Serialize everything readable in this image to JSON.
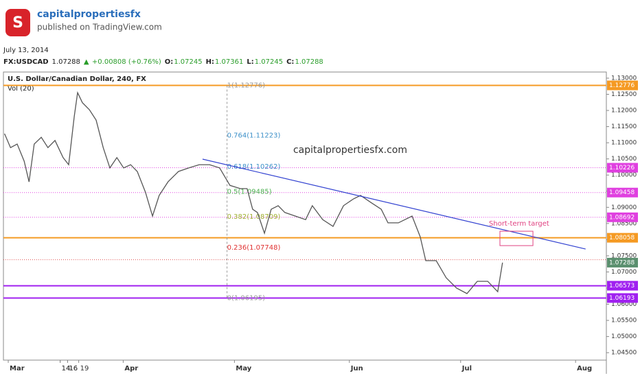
{
  "header": {
    "brand": "capitalpropertiesfx",
    "published": "published on TradingView.com",
    "date": "July 13, 2014",
    "quote": {
      "symbol": "FX:USDCAD",
      "last": "1.07288",
      "change": "+0.00808 (+0.76%)",
      "open_label": "O:",
      "open": "1.07245",
      "high_label": "H:",
      "high": "1.07361",
      "low_label": "L:",
      "low": "1.07245",
      "close_label": "C:",
      "close": "1.07288"
    }
  },
  "chart_data": {
    "type": "line",
    "title": "U.S. Dollar/Canadian Dollar, 240, FX",
    "subtitle": "Vol (20)",
    "watermark": "capitalpropertiesfx.com",
    "series": [
      {
        "name": "USDCAD",
        "color": "#555555",
        "x": [
          -1,
          0.6,
          2.4,
          4.3,
          5.6,
          7.0,
          8.9,
          10.7,
          12.6,
          14.8,
          16.3,
          17.8,
          18.7,
          20.0,
          21.9,
          23.7,
          25.6,
          27.4,
          29.3,
          31.1,
          33.0,
          34.8,
          37.0,
          38.9,
          40.7,
          43.1,
          45.9,
          48.7,
          51.5,
          54.3,
          57.0,
          59.8,
          62.6,
          64.4,
          65.9,
          67.2,
          69.1,
          70.9,
          72.8,
          74.6,
          77.4,
          80.2,
          82.0,
          84.8,
          87.6,
          90.4,
          93.1,
          95.0,
          97.8,
          100.6,
          102.4,
          105.2,
          108.9,
          111.1,
          112.6,
          115.4,
          118.1,
          120.9,
          123.7,
          126.5,
          129.3,
          132.0,
          133.3
        ],
        "values": [
          1.1128,
          1.1085,
          1.1096,
          1.1043,
          1.0979,
          1.1096,
          1.1117,
          1.1085,
          1.1107,
          1.1054,
          1.1032,
          1.1181,
          1.1255,
          1.1224,
          1.1202,
          1.117,
          1.1085,
          1.1022,
          1.1054,
          1.1022,
          1.1032,
          1.1011,
          1.0947,
          1.0873,
          1.0937,
          1.0979,
          1.1011,
          1.1022,
          1.1032,
          1.1032,
          1.1022,
          1.0968,
          1.0958,
          1.0958,
          1.0894,
          1.0884,
          1.082,
          1.0894,
          1.0905,
          1.0884,
          1.0873,
          1.0862,
          1.0905,
          1.0862,
          1.0841,
          1.0905,
          1.0926,
          1.0937,
          1.0915,
          1.0894,
          1.0852,
          1.0852,
          1.0873,
          1.0809,
          1.0735,
          1.0735,
          1.0682,
          1.065,
          1.0633,
          1.0671,
          1.0671,
          1.0639,
          1.07288
        ]
      }
    ],
    "xlim": [
      -1.3,
      161.3
    ],
    "ylim": [
      1.0427,
      1.1319
    ],
    "xticks": [
      {
        "value": 0,
        "label": "Mar"
      },
      16,
      {
        "value": 31,
        "label": "Apr"
      },
      14,
      {
        "value": 61,
        "label": "May"
      },
      19,
      {
        "value": 92,
        "label": "Jun"
      },
      16,
      {
        "value": 122,
        "label": "Jul"
      },
      14,
      {
        "value": 153,
        "label": "Aug"
      }
    ],
    "yticks": [
      {
        "value": 1.045,
        "label": "1.04500"
      },
      {
        "value": 1.05,
        "label": "1.05000"
      },
      {
        "value": 1.055,
        "label": "1.05500"
      },
      {
        "value": 1.06,
        "label": "1.06000"
      },
      {
        "value": 1.065,
        "label": "1.06500"
      },
      {
        "value": 1.07,
        "label": "1.07000"
      },
      {
        "value": 1.075,
        "label": "1.07500"
      },
      {
        "value": 1.08,
        "label": "1.08000"
      },
      {
        "value": 1.085,
        "label": "1.08500"
      },
      {
        "value": 1.09,
        "label": "1.09000"
      },
      {
        "value": 1.095,
        "label": "1.09500"
      },
      {
        "value": 1.1,
        "label": "1.10000"
      },
      {
        "value": 1.105,
        "label": "1.10500"
      },
      {
        "value": 1.11,
        "label": "1.11000"
      },
      {
        "value": 1.115,
        "label": "1.11500"
      },
      {
        "value": 1.12,
        "label": "1.12000"
      },
      {
        "value": 1.125,
        "label": "1.12500"
      },
      {
        "value": 1.13,
        "label": "1.13000"
      }
    ],
    "levels": [
      {
        "price": 1.12776,
        "color": "#f59a23",
        "style": "solid"
      },
      {
        "price": 1.10226,
        "color": "#e040e0",
        "style": "dotted"
      },
      {
        "price": 1.09458,
        "color": "#e040e0",
        "style": "dotted"
      },
      {
        "price": 1.08692,
        "color": "#e040e0",
        "style": "dotted"
      },
      {
        "price": 1.08058,
        "color": "#f59a23",
        "style": "solid"
      },
      {
        "price": 1.0738,
        "color": "#e05050",
        "style": "dotted"
      },
      {
        "price": 1.06573,
        "color": "#a020f0",
        "style": "solid"
      },
      {
        "price": 1.06193,
        "color": "#a020f0",
        "style": "solid"
      }
    ],
    "last_price": 1.07288,
    "fib_x": 59,
    "fibs": [
      {
        "value": 1.12776,
        "label": "1(1.12776)",
        "color": "#999999"
      },
      {
        "value": 1.11223,
        "label": "0.764(1.11223)",
        "color": "#3a8fc8"
      },
      {
        "value": 1.10262,
        "label": "0.618(1.10262)",
        "color": "#3a8fc8"
      },
      {
        "value": 1.09485,
        "label": "0.5(1.09485)",
        "color": "#4caf50"
      },
      {
        "value": 1.08709,
        "label": "0.382(1.08709)",
        "color": "#a0b030"
      },
      {
        "value": 1.07748,
        "label": "0.236(1.07748)",
        "color": "#e03030"
      },
      {
        "value": 1.06195,
        "label": "0(1.06195)",
        "color": "#999999"
      }
    ],
    "trendline": {
      "x": [
        52.4,
        155.7
      ],
      "values": [
        1.10493,
        1.07709
      ],
      "color": "#3040d0"
    },
    "target": {
      "x": [
        132.6,
        141.5
      ],
      "values": [
        1.08261,
        1.07815
      ],
      "label": "Short-term target",
      "color": "#e04080"
    }
  }
}
